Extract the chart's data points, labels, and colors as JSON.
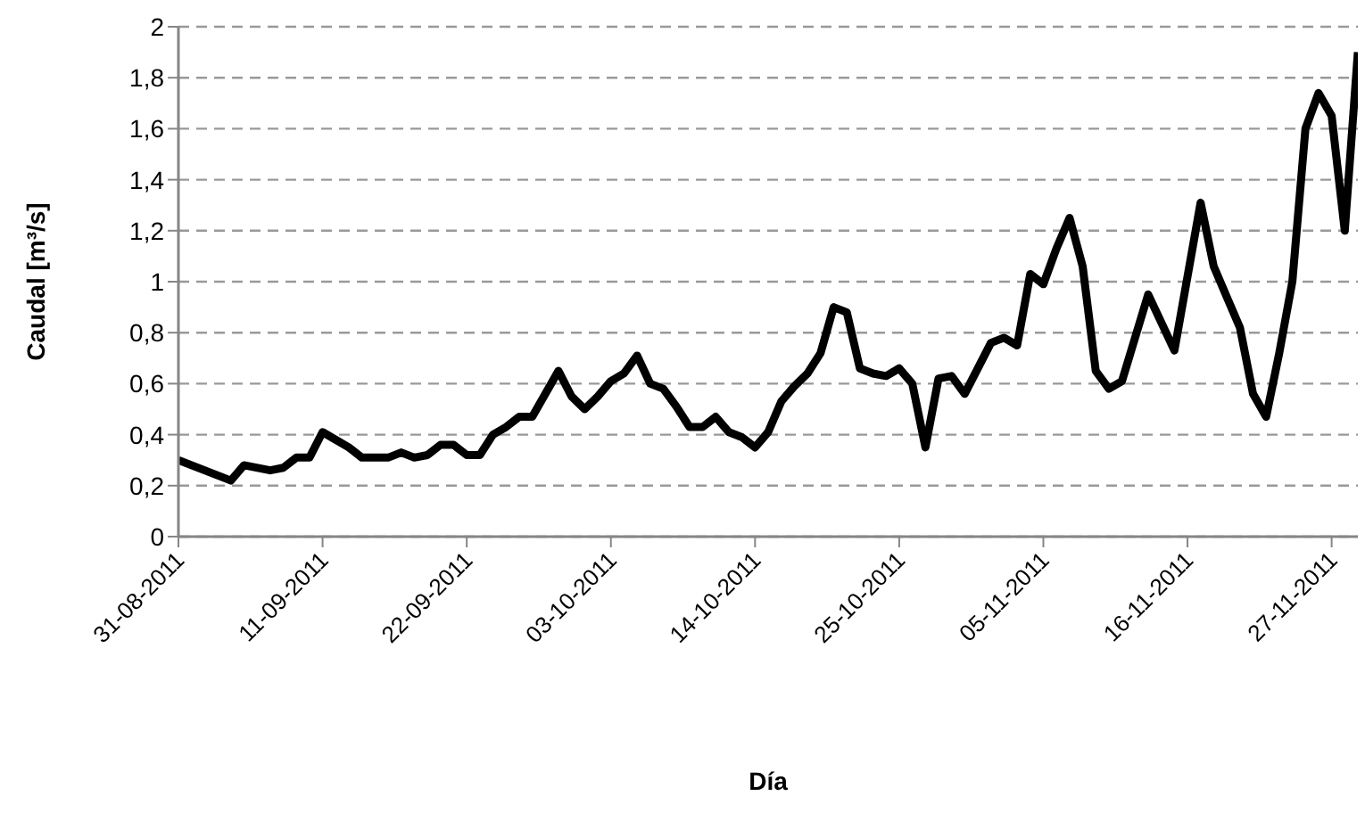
{
  "chart_data": {
    "type": "line",
    "xlabel": "Día",
    "ylabel": "Caudal [m³/s]",
    "x": [
      "2011-08-31",
      "2011-09-02",
      "2011-09-04",
      "2011-09-05",
      "2011-09-07",
      "2011-09-08",
      "2011-09-09",
      "2011-09-10",
      "2011-09-11",
      "2011-09-13",
      "2011-09-14",
      "2011-09-16",
      "2011-09-17",
      "2011-09-18",
      "2011-09-19",
      "2011-09-20",
      "2011-09-21",
      "2011-09-22",
      "2011-09-23",
      "2011-09-24",
      "2011-09-25",
      "2011-09-26",
      "2011-09-27",
      "2011-09-29",
      "2011-09-30",
      "2011-10-01",
      "2011-10-02",
      "2011-10-03",
      "2011-10-04",
      "2011-10-05",
      "2011-10-06",
      "2011-10-07",
      "2011-10-08",
      "2011-10-09",
      "2011-10-10",
      "2011-10-11",
      "2011-10-12",
      "2011-10-13",
      "2011-10-14",
      "2011-10-15",
      "2011-10-16",
      "2011-10-17",
      "2011-10-18",
      "2011-10-19",
      "2011-10-20",
      "2011-10-21",
      "2011-10-22",
      "2011-10-23",
      "2011-10-24",
      "2011-10-25",
      "2011-10-26",
      "2011-10-27",
      "2011-10-28",
      "2011-10-29",
      "2011-10-30",
      "2011-11-01",
      "2011-11-02",
      "2011-11-03",
      "2011-11-04",
      "2011-11-05",
      "2011-11-06",
      "2011-11-07",
      "2011-11-08",
      "2011-11-09",
      "2011-11-10",
      "2011-11-11",
      "2011-11-13",
      "2011-11-15",
      "2011-11-17",
      "2011-11-18",
      "2011-11-19",
      "2011-11-20",
      "2011-11-21",
      "2011-11-22",
      "2011-11-23",
      "2011-11-24",
      "2011-11-25",
      "2011-11-26",
      "2011-11-27",
      "2011-11-28",
      "2011-11-29"
    ],
    "series": [
      {
        "color": "#000000",
        "values": [
          0.3,
          0.26,
          0.22,
          0.28,
          0.26,
          0.27,
          0.31,
          0.31,
          0.41,
          0.35,
          0.31,
          0.31,
          0.33,
          0.31,
          0.32,
          0.36,
          0.36,
          0.32,
          0.32,
          0.4,
          0.43,
          0.47,
          0.47,
          0.65,
          0.55,
          0.5,
          0.55,
          0.61,
          0.64,
          0.71,
          0.6,
          0.58,
          0.51,
          0.43,
          0.43,
          0.47,
          0.41,
          0.39,
          0.35,
          0.41,
          0.53,
          0.59,
          0.64,
          0.72,
          0.9,
          0.88,
          0.66,
          0.64,
          0.63,
          0.66,
          0.6,
          0.35,
          0.62,
          0.63,
          0.56,
          0.76,
          0.78,
          0.75,
          1.03,
          0.99,
          1.13,
          1.25,
          1.06,
          0.65,
          0.58,
          0.61,
          0.95,
          0.73,
          1.31,
          1.06,
          0.94,
          0.82,
          0.56,
          0.47,
          0.72,
          1.0,
          1.6,
          1.74,
          1.65,
          1.2,
          1.9
        ]
      }
    ],
    "xlim": [
      "2011-08-31",
      "2011-11-29"
    ],
    "xticks": [
      {
        "value": "2011-08-31",
        "label": "31-08-2011"
      },
      {
        "value": "2011-09-11",
        "label": "11-09-2011"
      },
      {
        "value": "2011-09-22",
        "label": "22-09-2011"
      },
      {
        "value": "2011-10-03",
        "label": "03-10-2011"
      },
      {
        "value": "2011-10-14",
        "label": "14-10-2011"
      },
      {
        "value": "2011-10-25",
        "label": "25-10-2011"
      },
      {
        "value": "2011-11-05",
        "label": "05-11-2011"
      },
      {
        "value": "2011-11-16",
        "label": "16-11-2011"
      },
      {
        "value": "2011-11-27",
        "label": "27-11-2011"
      }
    ],
    "ylim": [
      0,
      2
    ],
    "yticks": [
      0,
      {
        "value": 0.2,
        "label": "0,2"
      },
      {
        "value": 0.4,
        "label": "0,4"
      },
      {
        "value": 0.6,
        "label": "0,6"
      },
      {
        "value": 0.8,
        "label": "0,8"
      },
      1,
      {
        "value": 1.2,
        "label": "1,2"
      },
      {
        "value": 1.4,
        "label": "1,4"
      },
      {
        "value": 1.6,
        "label": "1,6"
      },
      {
        "value": 1.8,
        "label": "1,8"
      },
      2
    ],
    "grid": "y"
  }
}
